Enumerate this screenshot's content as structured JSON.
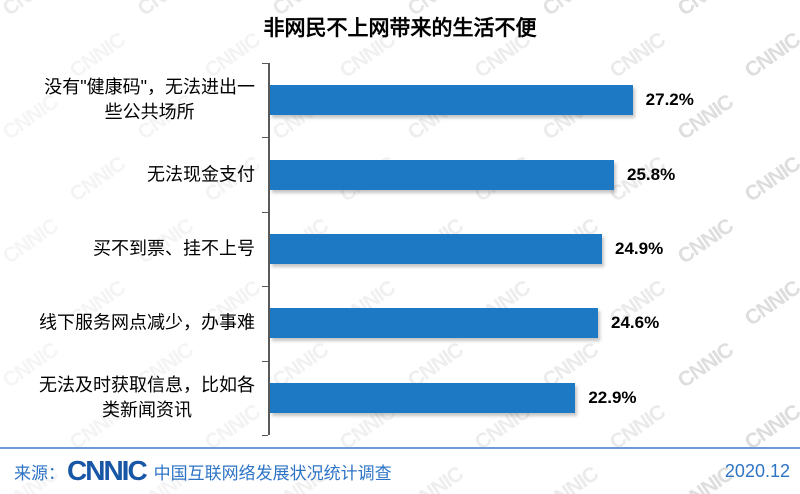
{
  "title": "非网民不上网带来的生活不便",
  "chart_data": {
    "type": "bar",
    "orientation": "horizontal",
    "title": "非网民不上网带来的生活不便",
    "categories": [
      "没有\"健康码\"，无法进出一\n些公共场所",
      "无法现金支付",
      "买不到票、挂不上号",
      "线下服务网点减少，办事难",
      "无法及时获取信息，比如各\n类新闻资讯"
    ],
    "values": [
      27.2,
      25.8,
      24.9,
      24.6,
      22.9
    ],
    "value_labels": [
      "27.2%",
      "25.8%",
      "24.9%",
      "24.6%",
      "22.9%"
    ],
    "xlim": [
      0,
      30
    ],
    "grid": false,
    "legend": "none",
    "bar_color": "#1D79C4",
    "axis_color": "#595959"
  },
  "watermark": {
    "text": "CNNIC"
  },
  "footer": {
    "source_prefix": "来源：",
    "logo_text": "CNNIC",
    "source_text": "中国互联网络发展状况统计调查",
    "date": "2020.12",
    "text_color": "#2E74C6",
    "logo_color": "#1757A6",
    "separator_color": "#6B9BD2"
  }
}
